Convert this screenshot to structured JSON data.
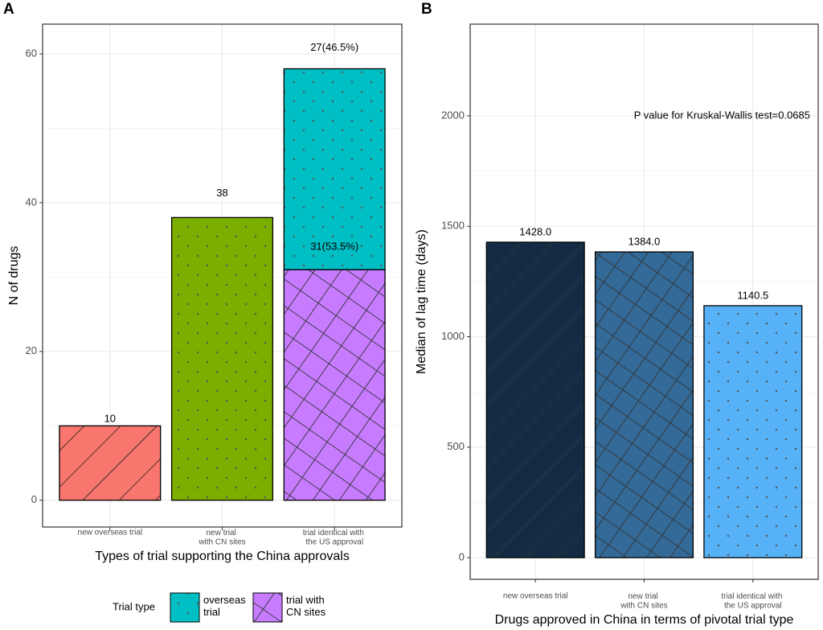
{
  "chart_data": [
    {
      "type": "bar",
      "stacked": true,
      "label": "A",
      "categories": [
        "new overseas trial",
        "new trial\nwith CN sites",
        "trial identical with\nthe US approval"
      ],
      "series": [
        {
          "name": "trial with\nCN sites",
          "color": "#C77CFF",
          "pattern": "crosshatch",
          "values": [
            null,
            38,
            31
          ],
          "colors": [
            null,
            "#7CAE00",
            "#C77CFF"
          ],
          "patterns": [
            null,
            "dots",
            "crosshatch"
          ],
          "value_labels": [
            null,
            null,
            "31(53.5%)"
          ]
        },
        {
          "name": "overseas\ntrial",
          "color": "#00BFC4",
          "pattern": "dots",
          "values": [
            10,
            null,
            27
          ],
          "colors": [
            "#F8766D",
            null,
            "#00BFC4"
          ],
          "patterns": [
            "stripes",
            null,
            "dots"
          ],
          "value_labels": [
            null,
            null,
            "27(46.5%)"
          ]
        }
      ],
      "xlabel": "Types of trial supporting the China approvals",
      "ylabel": "N of drugs",
      "ylim": [
        -3.6,
        64
      ],
      "yticks": [
        0,
        20,
        40,
        60
      ],
      "grid": true,
      "legend_title": "Trial type",
      "legend": "bottom"
    },
    {
      "type": "bar",
      "label": "B",
      "categories": [
        "new overseas trial",
        "new trial\nwith CN sites",
        "trial identical with\nthe US approval"
      ],
      "values": [
        1428,
        1384,
        1140.5
      ],
      "value_labels": [
        "1428.0",
        "1384.0",
        "1140.5"
      ],
      "colors": [
        "#132B43",
        "#336A98",
        "#56B1F7"
      ],
      "patterns": [
        "stripes",
        "crosshatch",
        "dots"
      ],
      "xlabel": "Drugs approved in China in terms of pivotal trial type",
      "ylabel": "Median of lag time (days)",
      "annotation": "P value for Kruskal-Wallis test=0.0685",
      "ylim": [
        -98,
        2415
      ],
      "yticks": [
        0,
        500,
        1000,
        1500,
        2000
      ],
      "grid": true
    }
  ]
}
